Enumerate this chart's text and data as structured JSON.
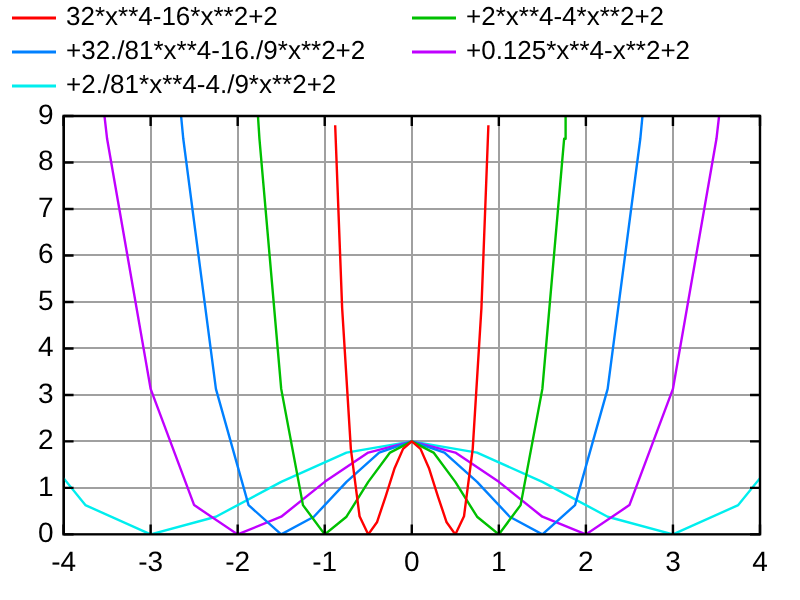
{
  "chart_data": {
    "type": "line",
    "xlim": [
      -4,
      4
    ],
    "xticks": [
      -4,
      -3,
      -2,
      -1,
      0,
      1,
      2,
      3,
      4
    ],
    "ylim": [
      0,
      9
    ],
    "yticks": [
      0,
      1,
      2,
      3,
      4,
      5,
      6,
      7,
      8,
      9
    ],
    "grid": true,
    "legend": "top",
    "marker": "none",
    "line_style": "solid",
    "series": [
      {
        "name": "32*x**4-16*x**2+2",
        "color": "#ff0000",
        "x": [
          -0.88,
          -0.8,
          -0.7,
          -0.6,
          -0.5,
          -0.4,
          -0.3,
          -0.2,
          -0.1,
          0,
          0.1,
          0.2,
          0.3,
          0.4,
          0.5,
          0.6,
          0.7,
          0.8,
          0.88
        ],
        "values": [
          8.8,
          4.87,
          1.84,
          0.39,
          0,
          0.26,
          0.82,
          1.41,
          1.84,
          2,
          1.84,
          1.41,
          0.82,
          0.26,
          0,
          0.39,
          1.84,
          4.87,
          8.8
        ]
      },
      {
        "name": "+2*x**4-4*x**2+2",
        "color": "#00c000",
        "x": [
          -1.767,
          -1.75,
          -1.5,
          -1.25,
          -1,
          -0.75,
          -0.5,
          -0.25,
          0,
          0.25,
          0.5,
          0.75,
          1,
          1.25,
          1.5,
          1.75,
          1.767
        ],
        "values": [
          9,
          8.51,
          3.13,
          0.63,
          0,
          0.38,
          1.13,
          1.76,
          2,
          1.76,
          1.13,
          0.38,
          0,
          0.63,
          3.13,
          8.51,
          9
        ]
      },
      {
        "name": "+32./81*x**4-16./9*x**2+2",
        "color": "#0080ff",
        "x": [
          -2.65,
          -2.625,
          -2.25,
          -1.875,
          -1.5,
          -1.125,
          -0.75,
          -0.375,
          0,
          0.375,
          0.75,
          1.125,
          1.5,
          1.875,
          2.25,
          2.625,
          2.65
        ],
        "values": [
          9,
          8.51,
          3.13,
          0.63,
          0,
          0.38,
          1.13,
          1.76,
          2,
          1.76,
          1.13,
          0.38,
          0,
          0.63,
          3.13,
          8.51,
          9
        ]
      },
      {
        "name": "+0.125*x**4-x**2+2",
        "color": "#c000ff",
        "x": [
          -3.53,
          -3.5,
          -3,
          -2.5,
          -2,
          -1.5,
          -1,
          -0.5,
          0,
          0.5,
          1,
          1.5,
          2,
          2.5,
          3,
          3.5,
          3.53
        ],
        "values": [
          9,
          8.51,
          3.13,
          0.63,
          0,
          0.38,
          1.13,
          1.76,
          2,
          1.76,
          1.13,
          0.38,
          0,
          0.63,
          3.13,
          8.51,
          9
        ]
      },
      {
        "name": "+2./81*x**4-4./9*x**2+2",
        "color": "#00eeee",
        "x": [
          -4,
          -3.75,
          -3,
          -2.25,
          -1.5,
          -0.75,
          0,
          0.75,
          1.5,
          2.25,
          3,
          3.75,
          4
        ],
        "values": [
          1.21,
          0.63,
          0,
          0.38,
          1.13,
          1.76,
          2,
          1.76,
          1.13,
          0.38,
          0,
          0.63,
          1.21
        ]
      }
    ]
  }
}
